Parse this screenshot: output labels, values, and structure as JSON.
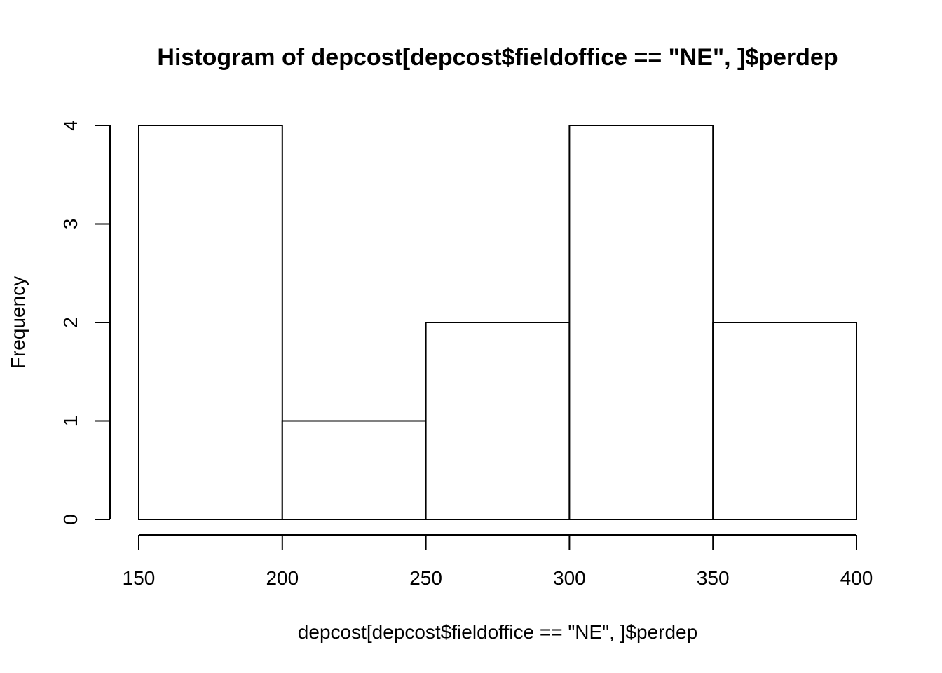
{
  "chart_data": {
    "type": "bar",
    "title": "Histogram of depcost[depcost$fieldoffice == \"NE\", ]$perdep",
    "xlabel": "depcost[depcost$fieldoffice == \"NE\", ]$perdep",
    "ylabel": "Frequency",
    "bins": [
      {
        "start": 150,
        "end": 200,
        "count": 4
      },
      {
        "start": 200,
        "end": 250,
        "count": 1
      },
      {
        "start": 250,
        "end": 300,
        "count": 2
      },
      {
        "start": 300,
        "end": 350,
        "count": 4
      },
      {
        "start": 350,
        "end": 400,
        "count": 2
      }
    ],
    "x_ticks": [
      150,
      200,
      250,
      300,
      350,
      400
    ],
    "y_ticks": [
      0,
      1,
      2,
      3,
      4
    ],
    "xlim": [
      150,
      400
    ],
    "ylim": [
      0,
      4
    ],
    "grid": false,
    "bar_fill": "#ffffff",
    "bar_stroke": "#000000"
  }
}
